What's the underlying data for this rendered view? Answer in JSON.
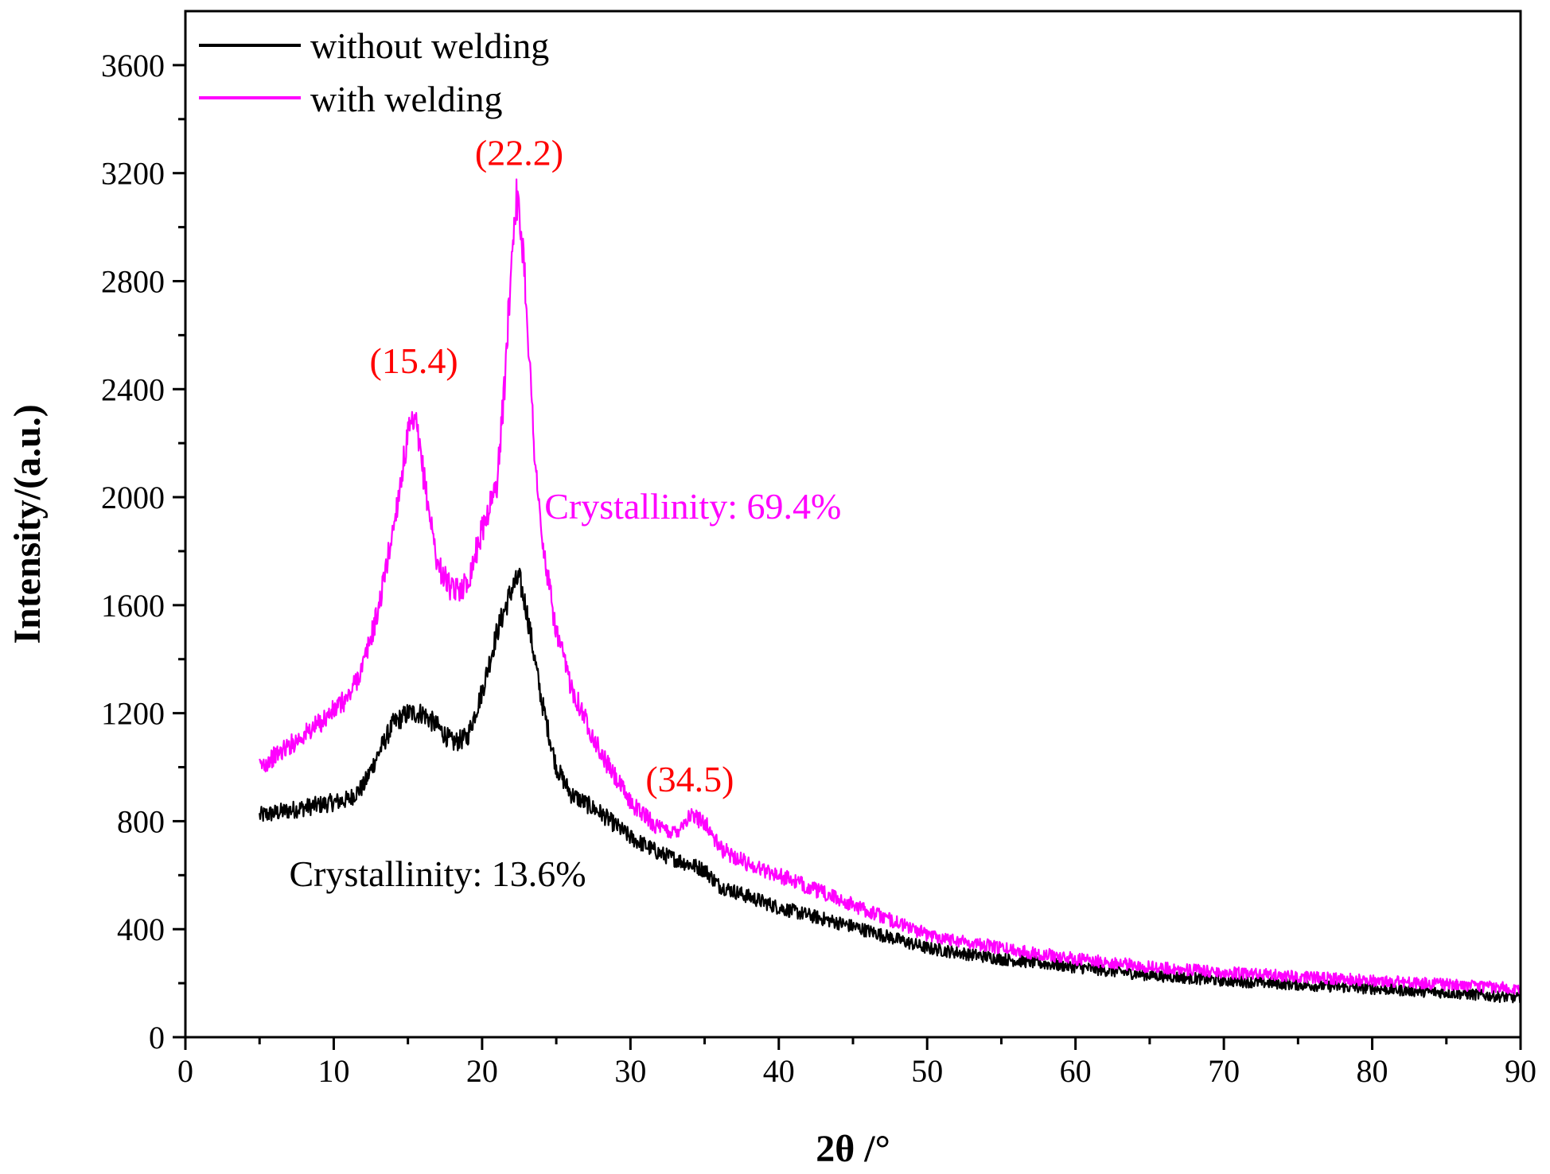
{
  "chart_data": {
    "type": "line",
    "title": "",
    "xlabel": "2θ /°",
    "ylabel": "Intensity/(a.u.)",
    "xlim": [
      0,
      90
    ],
    "ylim": [
      0,
      3800
    ],
    "xticks": [
      0,
      10,
      20,
      30,
      40,
      50,
      60,
      70,
      80,
      90
    ],
    "yticks": [
      0,
      400,
      800,
      1200,
      1600,
      2000,
      2400,
      2800,
      3200,
      3600
    ],
    "grid": false,
    "legend_position": "top-left",
    "series": [
      {
        "name": "without welding",
        "color": "#000000",
        "x": [
          5,
          7,
          9,
          11,
          12,
          13,
          14,
          15,
          16,
          17,
          18,
          19,
          20,
          21,
          22,
          22.5,
          23,
          24,
          25,
          26,
          28,
          30,
          32,
          34,
          35,
          36,
          40,
          45,
          50,
          55,
          60,
          65,
          70,
          75,
          80,
          85,
          90
        ],
        "y": [
          820,
          840,
          860,
          880,
          930,
          1050,
          1160,
          1200,
          1200,
          1150,
          1090,
          1110,
          1280,
          1500,
          1660,
          1700,
          1580,
          1250,
          1000,
          900,
          830,
          740,
          680,
          640,
          620,
          560,
          480,
          410,
          330,
          290,
          260,
          230,
          210,
          195,
          180,
          165,
          145
        ]
      },
      {
        "name": "with welding",
        "color": "#ff00ff",
        "x": [
          5,
          7,
          9,
          11,
          12,
          13,
          14,
          15,
          15.5,
          16,
          17,
          18,
          19,
          20,
          21,
          21.5,
          22,
          22.3,
          22.8,
          23.5,
          24,
          25,
          26,
          28,
          30,
          32,
          33,
          34,
          35,
          36,
          38,
          40,
          45,
          50,
          55,
          60,
          65,
          70,
          75,
          80,
          85,
          90
        ],
        "y": [
          1000,
          1080,
          1160,
          1260,
          1380,
          1580,
          1880,
          2230,
          2280,
          2100,
          1750,
          1650,
          1680,
          1880,
          2050,
          2400,
          2900,
          3120,
          2900,
          2200,
          1850,
          1500,
          1300,
          1050,
          870,
          770,
          760,
          820,
          800,
          700,
          640,
          600,
          490,
          380,
          330,
          290,
          260,
          240,
          225,
          210,
          195,
          180
        ]
      }
    ],
    "annotations": [
      {
        "text": "(15.4)",
        "x": 15.4,
        "y": 2460,
        "color": "#ff0000"
      },
      {
        "text": "(22.2)",
        "x": 22.5,
        "y": 3230,
        "color": "#ff0000"
      },
      {
        "text": "(34.5)",
        "x": 34,
        "y": 910,
        "color": "#ff0000"
      },
      {
        "text": "Crystallinity: 69.4%",
        "x": 24.2,
        "y": 1920,
        "color": "#ff00ff"
      },
      {
        "text": "Crystallinity: 13.6%",
        "x": 7.0,
        "y": 560,
        "color": "#000000"
      }
    ]
  }
}
